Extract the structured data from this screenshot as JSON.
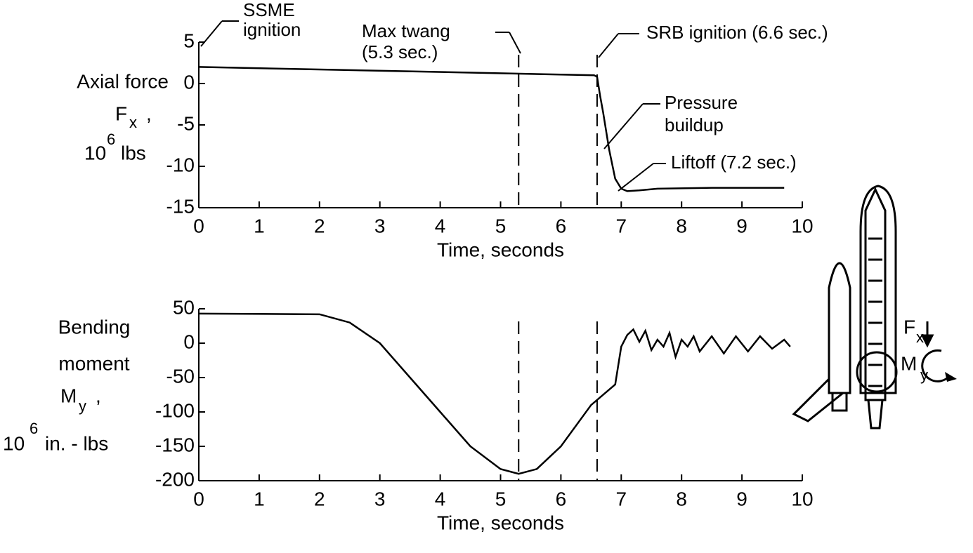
{
  "chart_data": [
    {
      "type": "line",
      "ylabel": [
        "Axial force",
        "F",
        "x",
        ",",
        "10",
        "6",
        "lbs"
      ],
      "xlabel": "Time, seconds",
      "annotations": [
        "SSME",
        "ignition",
        "Max twang",
        "(5.3 sec.)",
        "SRB ignition (6.6 sec.)",
        "Pressure",
        "buildup",
        "Liftoff (7.2 sec.)"
      ],
      "vlines": [
        5.3,
        6.6
      ],
      "xlim": [
        0,
        10
      ],
      "xticks": [
        0,
        1,
        2,
        3,
        4,
        5,
        6,
        7,
        8,
        9,
        10
      ],
      "ylim": [
        -15,
        5
      ],
      "yticks": [
        5,
        0,
        -5,
        -10,
        -15
      ],
      "x": [
        0,
        6.55,
        6.6,
        6.65,
        6.7,
        6.8,
        6.9,
        7.0,
        7.1,
        7.3,
        7.6,
        8.5,
        9.7
      ],
      "series": [
        {
          "color": "#000000",
          "values": [
            2,
            1,
            0.8,
            -1.5,
            -3.5,
            -8,
            -11.5,
            -12.7,
            -13,
            -12.9,
            -12.7,
            -12.6,
            -12.6
          ]
        }
      ]
    },
    {
      "type": "line",
      "ylabel": [
        "Bending",
        "moment",
        "M",
        "y",
        ",",
        "10",
        "6",
        "in. - lbs"
      ],
      "xlabel": "Time, seconds",
      "illustration": [
        "F",
        "x",
        "M",
        "y"
      ],
      "vlines": [
        5.3,
        6.6
      ],
      "xlim": [
        0,
        10
      ],
      "xticks": [
        0,
        1,
        2,
        3,
        4,
        5,
        6,
        7,
        8,
        9,
        10
      ],
      "ylim": [
        -200,
        50
      ],
      "yticks": [
        50,
        0,
        -50,
        -100,
        -150,
        -200
      ],
      "x": [
        0,
        2,
        2.5,
        3,
        3.5,
        4,
        4.5,
        5,
        5.3,
        5.6,
        6,
        6.5,
        6.9,
        7.0,
        7.1,
        7.2,
        7.3,
        7.4,
        7.5,
        7.6,
        7.7,
        7.8,
        7.9,
        8.0,
        8.1,
        8.2,
        8.3,
        8.5,
        8.7,
        8.9,
        9.1,
        9.3,
        9.5,
        9.7,
        9.8
      ],
      "series": [
        {
          "color": "#000000",
          "values": [
            43,
            42,
            30,
            0,
            -50,
            -100,
            -150,
            -183,
            -190,
            -183,
            -150,
            -90,
            -60,
            -5,
            12,
            20,
            2,
            18,
            -10,
            5,
            -5,
            15,
            -20,
            5,
            -5,
            10,
            -12,
            10,
            -15,
            10,
            -12,
            10,
            -8,
            5,
            -5
          ]
        }
      ]
    }
  ]
}
